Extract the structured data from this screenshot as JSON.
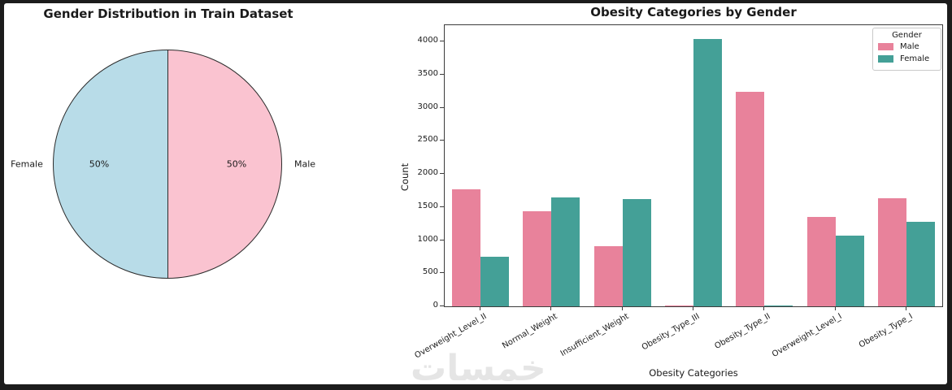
{
  "figure": {
    "background": "#ffffff",
    "frame_color": "#1c1c1c",
    "text_color": "#1a1a1a"
  },
  "watermark": {
    "text": "خمسات",
    "color": "#e5e5e5"
  },
  "chart_data": [
    {
      "type": "pie",
      "title": "Gender Distribution in Train Dataset",
      "labels": [
        "Female",
        "Male"
      ],
      "values": [
        50,
        50
      ],
      "value_labels": [
        "50%",
        "50%"
      ],
      "colors": [
        "#b8dce8",
        "#fac3d0"
      ],
      "edge_color": "#2b2b2b",
      "start_angle": 90,
      "layout": "left half Female (light blue), right half Male (pink), vertical split"
    },
    {
      "type": "bar",
      "title": "Obesity Categories by Gender",
      "xlabel": "Obesity Categories",
      "ylabel": "Count",
      "categories": [
        "Overweight_Level_II",
        "Normal_Weight",
        "Insufficient_Weight",
        "Obesity_Type_III",
        "Obesity_Type_II",
        "Overweight_Level_I",
        "Obesity_Type_I"
      ],
      "series": [
        {
          "name": "Male",
          "color": "#e8829b",
          "values": [
            1770,
            1431,
            903,
            5,
            3239,
            1356,
            1639
          ]
        },
        {
          "name": "Female",
          "color": "#44a097",
          "values": [
            752,
            1651,
            1620,
            4041,
            9,
            1071,
            1271
          ]
        }
      ],
      "yticks": [
        "0",
        "500",
        "1000",
        "1500",
        "2000",
        "2500",
        "3000",
        "3500",
        "4000"
      ],
      "ytick_values": [
        0,
        500,
        1000,
        1500,
        2000,
        2500,
        3000,
        3500,
        4000
      ],
      "ylim": [
        0,
        4248
      ],
      "grid": false,
      "legend": {
        "title": "Gender",
        "entries": [
          "Male",
          "Female"
        ],
        "position": "upper right"
      },
      "xtick_rotation": 30
    }
  ]
}
